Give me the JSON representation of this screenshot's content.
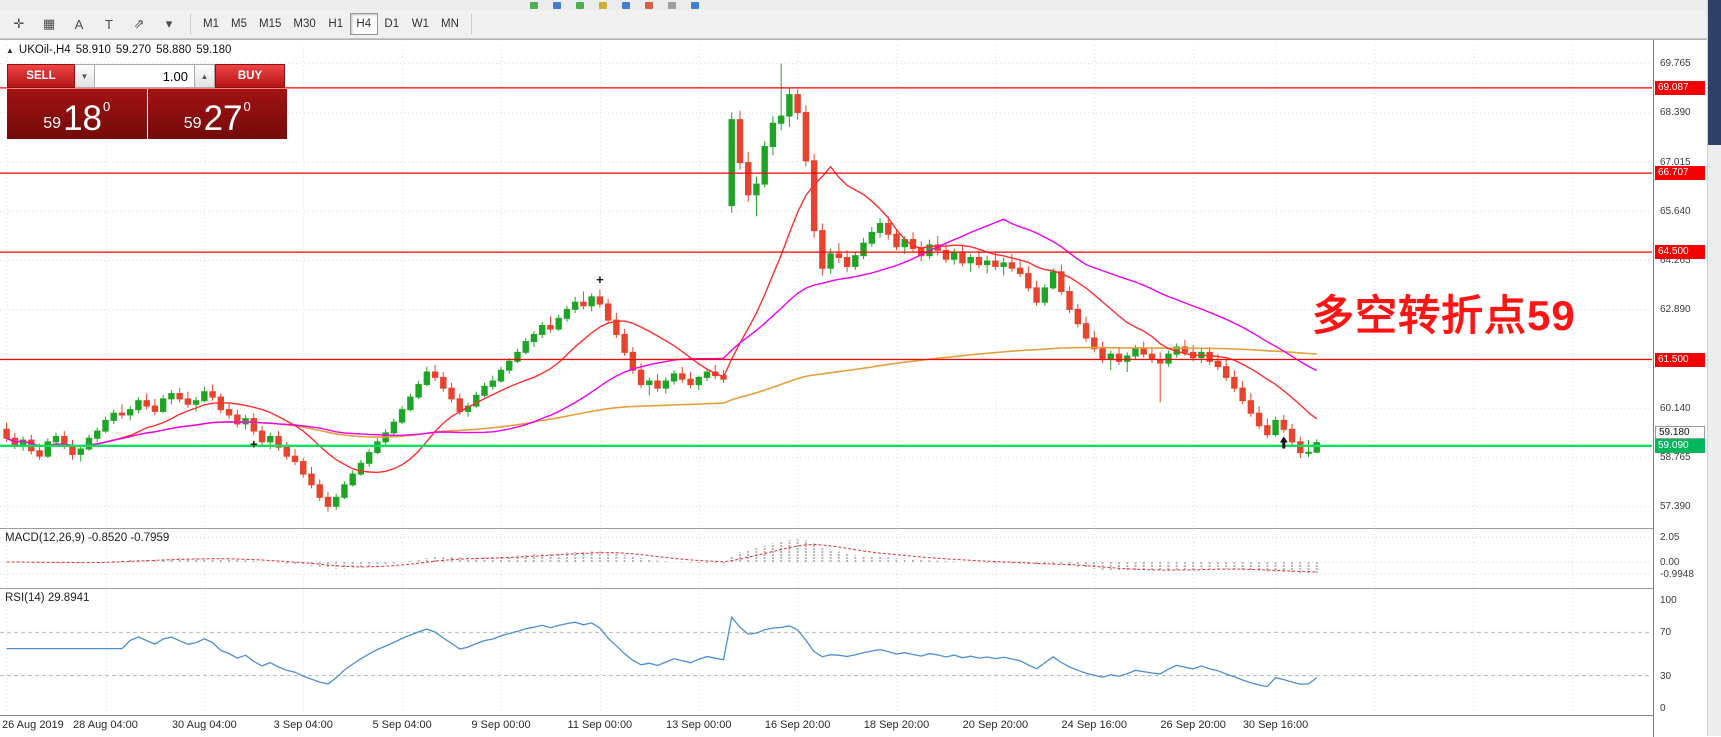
{
  "top_strip": {
    "icon_colors": [
      "#4CAF50",
      "#3F7FD1",
      "#4CAF50",
      "#C9B037",
      "#3F7FD1",
      "#D1603F",
      "#9E9E9E",
      "#3F7FD1"
    ]
  },
  "toolbar": {
    "tools": [
      {
        "name": "crosshair-tool-icon",
        "glyph": "✛"
      },
      {
        "name": "grid-indicator-icon",
        "glyph": "▦"
      },
      {
        "name": "text-tool-icon",
        "glyph": "A"
      },
      {
        "name": "text-label-tool-icon",
        "glyph": "T"
      },
      {
        "name": "arrows-tool-icon",
        "glyph": "⇗"
      },
      {
        "name": "dropdown-chevron-icon",
        "glyph": "▾"
      }
    ],
    "timeframes": [
      {
        "label": "M1",
        "active": false
      },
      {
        "label": "M5",
        "active": false
      },
      {
        "label": "M15",
        "active": false
      },
      {
        "label": "M30",
        "active": false
      },
      {
        "label": "H1",
        "active": false
      },
      {
        "label": "H4",
        "active": true
      },
      {
        "label": "D1",
        "active": false
      },
      {
        "label": "W1",
        "active": false
      },
      {
        "label": "MN",
        "active": false
      }
    ]
  },
  "chart_header": {
    "expand_glyph": "▲",
    "symbol": "UKOil-,H4",
    "open": "58.910",
    "high": "59.270",
    "low": "58.880",
    "close": "59.180"
  },
  "trade_panel": {
    "sell_label": "SELL",
    "buy_label": "BUY",
    "volume": "1.00",
    "spin_down": "▼",
    "spin_up": "▲",
    "sell_price": {
      "small": "59",
      "big": "18",
      "sup": "0"
    },
    "buy_price": {
      "small": "59",
      "big": "27",
      "sup": "0"
    }
  },
  "annotation": {
    "text": "多空转折点59",
    "color": "#FF1414"
  },
  "price_axis": {
    "labels": [
      {
        "text": "69.765",
        "value": 69.765
      },
      {
        "text": "68.390",
        "value": 68.39
      },
      {
        "text": "67.015",
        "value": 67.015
      },
      {
        "text": "65.640",
        "value": 65.64
      },
      {
        "text": "64.265",
        "value": 64.265
      },
      {
        "text": "62.890",
        "value": 62.89
      },
      {
        "text": "60.140",
        "value": 60.14
      },
      {
        "text": "58.765",
        "value": 58.765
      },
      {
        "text": "57.390",
        "value": 57.39
      }
    ],
    "red_tags": [
      {
        "text": "69.087",
        "value": 69.087
      },
      {
        "text": "66.707",
        "value": 66.707
      },
      {
        "text": "64.500",
        "value": 64.5
      },
      {
        "text": "61.500",
        "value": 61.5
      }
    ],
    "bid_tag": {
      "text": "59.180",
      "value": 59.18
    },
    "green_tag": {
      "text": "59.090",
      "value": 59.09
    }
  },
  "grid_prices": [
    69.765,
    68.39,
    67.015,
    65.64,
    64.265,
    62.89,
    61.515,
    60.14,
    58.765,
    57.39
  ],
  "time_axis": [
    {
      "label": "26 Aug 2019",
      "i": 0
    },
    {
      "label": "28 Aug 04:00",
      "i": 12
    },
    {
      "label": "30 Aug 04:00",
      "i": 24
    },
    {
      "label": "3 Sep 04:00",
      "i": 36
    },
    {
      "label": "5 Sep 04:00",
      "i": 48
    },
    {
      "label": "9 Sep 00:00",
      "i": 60
    },
    {
      "label": "11 Sep 00:00",
      "i": 72
    },
    {
      "label": "13 Sep 00:00",
      "i": 84
    },
    {
      "label": "16 Sep 20:00",
      "i": 96
    },
    {
      "label": "18 Sep 20:00",
      "i": 108
    },
    {
      "label": "20 Sep 20:00",
      "i": 120
    },
    {
      "label": "24 Sep 16:00",
      "i": 132
    },
    {
      "label": "26 Sep 20:00",
      "i": 144
    },
    {
      "label": "30 Sep 16:00",
      "i": 154
    }
  ],
  "macd_panel": {
    "label": "MACD(12,26,9) -0.8520 -0.7959",
    "axis": [
      {
        "text": "2.05",
        "value": 2.05
      },
      {
        "text": "0.00",
        "value": 0
      },
      {
        "text": "-0.9948",
        "value": -0.9948
      }
    ]
  },
  "rsi_panel": {
    "label": "RSI(14) 29.8941",
    "axis": [
      {
        "text": "100",
        "value": 100
      },
      {
        "text": "70",
        "value": 70
      },
      {
        "text": "30",
        "value": 30
      },
      {
        "text": "0",
        "value": 0
      }
    ],
    "level_lines": [
      70,
      30
    ]
  },
  "chart_data": {
    "type": "candlestick",
    "symbol": "UKOil-",
    "timeframe": "H4",
    "current_bar": {
      "open": 58.91,
      "high": 59.27,
      "low": 58.88,
      "close": 59.18
    },
    "price_range_visible": [
      57.39,
      69.765
    ],
    "hlines_red": [
      69.087,
      66.707,
      64.5,
      61.5
    ],
    "hline_green": 59.09,
    "colors": {
      "up": "#1FA526",
      "down": "#E8432C",
      "red_line": "#FF0000",
      "green_line": "#00E25C"
    },
    "overlays": [
      {
        "name": "ma-slow-orange",
        "color": "#E2A13C",
        "period": 160,
        "width": 1.6
      },
      {
        "name": "ma-fast-red",
        "color": "#FF2E2E",
        "period": 13,
        "width": 1.4
      },
      {
        "name": "ma-mid-magenta",
        "color": "#EE00EE",
        "period": 34,
        "width": 1.4
      }
    ],
    "indicators": [
      {
        "name": "MACD",
        "params": [
          12,
          26,
          9
        ],
        "value": -0.852,
        "signal": -0.7959
      },
      {
        "name": "RSI",
        "params": [
          14
        ],
        "value": 29.8941
      }
    ],
    "markers": [
      {
        "type": "cross",
        "index": 30,
        "price": 59.12
      },
      {
        "type": "cross",
        "index": 72,
        "price": 63.72
      },
      {
        "type": "arrow-up",
        "index": 155,
        "price": 59.18
      }
    ],
    "candles": [
      [
        59.55,
        59.75,
        59.2,
        59.3
      ],
      [
        59.3,
        59.45,
        59.0,
        59.1
      ],
      [
        59.1,
        59.35,
        58.95,
        59.25
      ],
      [
        59.25,
        59.4,
        58.85,
        58.95
      ],
      [
        58.95,
        59.15,
        58.7,
        58.8
      ],
      [
        58.8,
        59.3,
        58.75,
        59.2
      ],
      [
        59.2,
        59.45,
        59.05,
        59.35
      ],
      [
        59.35,
        59.5,
        59.0,
        59.1
      ],
      [
        59.1,
        59.25,
        58.7,
        58.85
      ],
      [
        58.85,
        59.1,
        58.65,
        59.0
      ],
      [
        59.0,
        59.4,
        58.95,
        59.3
      ],
      [
        59.3,
        59.6,
        59.2,
        59.5
      ],
      [
        59.5,
        59.9,
        59.45,
        59.8
      ],
      [
        59.8,
        60.1,
        59.7,
        60.0
      ],
      [
        60.0,
        60.25,
        59.85,
        59.95
      ],
      [
        59.95,
        60.2,
        59.8,
        60.1
      ],
      [
        60.1,
        60.45,
        60.0,
        60.35
      ],
      [
        60.35,
        60.55,
        60.1,
        60.2
      ],
      [
        60.2,
        60.4,
        59.95,
        60.05
      ],
      [
        60.05,
        60.5,
        60.0,
        60.4
      ],
      [
        60.4,
        60.65,
        60.25,
        60.55
      ],
      [
        60.55,
        60.7,
        60.3,
        60.4
      ],
      [
        60.4,
        60.6,
        60.15,
        60.25
      ],
      [
        60.25,
        60.45,
        60.05,
        60.35
      ],
      [
        60.35,
        60.75,
        60.3,
        60.6
      ],
      [
        60.6,
        60.8,
        60.35,
        60.45
      ],
      [
        60.45,
        60.55,
        60.0,
        60.1
      ],
      [
        60.1,
        60.3,
        59.85,
        59.95
      ],
      [
        59.95,
        60.1,
        59.6,
        59.7
      ],
      [
        59.7,
        59.95,
        59.55,
        59.85
      ],
      [
        59.85,
        60.0,
        59.4,
        59.5
      ],
      [
        59.5,
        59.65,
        59.1,
        59.2
      ],
      [
        59.2,
        59.45,
        59.0,
        59.35
      ],
      [
        59.35,
        59.5,
        58.95,
        59.05
      ],
      [
        59.05,
        59.2,
        58.7,
        58.8
      ],
      [
        58.8,
        59.0,
        58.55,
        58.65
      ],
      [
        58.65,
        58.75,
        58.2,
        58.3
      ],
      [
        58.3,
        58.5,
        57.9,
        58.0
      ],
      [
        58.0,
        58.15,
        57.55,
        57.65
      ],
      [
        57.65,
        57.8,
        57.25,
        57.4
      ],
      [
        57.4,
        57.75,
        57.3,
        57.65
      ],
      [
        57.65,
        58.1,
        57.6,
        58.0
      ],
      [
        58.0,
        58.4,
        57.95,
        58.3
      ],
      [
        58.3,
        58.7,
        58.25,
        58.6
      ],
      [
        58.6,
        59.0,
        58.5,
        58.9
      ],
      [
        58.9,
        59.3,
        58.85,
        59.2
      ],
      [
        59.2,
        59.55,
        59.1,
        59.45
      ],
      [
        59.45,
        59.85,
        59.4,
        59.75
      ],
      [
        59.75,
        60.2,
        59.7,
        60.1
      ],
      [
        60.1,
        60.55,
        60.05,
        60.45
      ],
      [
        60.45,
        60.9,
        60.4,
        60.8
      ],
      [
        60.8,
        61.3,
        60.75,
        61.15
      ],
      [
        61.15,
        61.35,
        60.9,
        61.0
      ],
      [
        61.0,
        61.15,
        60.6,
        60.7
      ],
      [
        60.7,
        60.85,
        60.3,
        60.4
      ],
      [
        60.4,
        60.55,
        59.95,
        60.05
      ],
      [
        60.05,
        60.3,
        59.9,
        60.2
      ],
      [
        60.2,
        60.6,
        60.15,
        60.5
      ],
      [
        60.5,
        60.85,
        60.45,
        60.75
      ],
      [
        60.75,
        61.05,
        60.65,
        60.9
      ],
      [
        60.9,
        61.3,
        60.85,
        61.2
      ],
      [
        61.2,
        61.55,
        61.1,
        61.45
      ],
      [
        61.45,
        61.8,
        61.4,
        61.7
      ],
      [
        61.7,
        62.1,
        61.65,
        62.0
      ],
      [
        62.0,
        62.3,
        61.85,
        62.2
      ],
      [
        62.2,
        62.55,
        62.1,
        62.45
      ],
      [
        62.45,
        62.7,
        62.25,
        62.35
      ],
      [
        62.35,
        62.75,
        62.3,
        62.65
      ],
      [
        62.65,
        63.0,
        62.55,
        62.9
      ],
      [
        62.9,
        63.25,
        62.8,
        63.1
      ],
      [
        63.1,
        63.4,
        62.9,
        63.0
      ],
      [
        63.0,
        63.35,
        62.85,
        63.25
      ],
      [
        63.25,
        63.45,
        62.95,
        63.05
      ],
      [
        63.05,
        63.2,
        62.5,
        62.6
      ],
      [
        62.6,
        62.8,
        62.1,
        62.2
      ],
      [
        62.2,
        62.35,
        61.6,
        61.7
      ],
      [
        61.7,
        61.85,
        61.1,
        61.2
      ],
      [
        61.2,
        61.4,
        60.7,
        60.8
      ],
      [
        60.8,
        61.0,
        60.5,
        60.9
      ],
      [
        60.9,
        61.1,
        60.6,
        60.7
      ],
      [
        60.7,
        61.0,
        60.55,
        60.9
      ],
      [
        60.9,
        61.2,
        60.8,
        61.1
      ],
      [
        61.1,
        61.3,
        60.85,
        60.95
      ],
      [
        60.95,
        61.15,
        60.7,
        60.8
      ],
      [
        60.8,
        61.05,
        60.65,
        61.0
      ],
      [
        61.0,
        61.25,
        60.9,
        61.15
      ],
      [
        61.15,
        61.35,
        60.95,
        61.05
      ],
      [
        61.05,
        61.2,
        60.85,
        60.95
      ],
      [
        65.8,
        68.4,
        65.6,
        68.2
      ],
      [
        68.2,
        68.45,
        66.8,
        67.0
      ],
      [
        67.0,
        67.3,
        65.9,
        66.1
      ],
      [
        66.1,
        66.6,
        65.5,
        66.4
      ],
      [
        66.4,
        67.6,
        66.3,
        67.45
      ],
      [
        67.45,
        68.3,
        67.2,
        68.1
      ],
      [
        68.1,
        69.765,
        67.9,
        68.3
      ],
      [
        68.3,
        69.1,
        68.0,
        68.9
      ],
      [
        68.9,
        69.05,
        68.2,
        68.4
      ],
      [
        68.4,
        68.6,
        66.9,
        67.05
      ],
      [
        67.05,
        67.25,
        64.9,
        65.1
      ],
      [
        65.1,
        65.3,
        63.85,
        64.05
      ],
      [
        64.05,
        64.6,
        63.9,
        64.45
      ],
      [
        64.45,
        64.75,
        64.2,
        64.35
      ],
      [
        64.35,
        64.55,
        63.95,
        64.1
      ],
      [
        64.1,
        64.5,
        64.0,
        64.4
      ],
      [
        64.4,
        64.9,
        64.3,
        64.75
      ],
      [
        64.75,
        65.2,
        64.65,
        65.05
      ],
      [
        65.05,
        65.45,
        64.9,
        65.3
      ],
      [
        65.3,
        65.5,
        64.85,
        65.0
      ],
      [
        65.0,
        65.15,
        64.55,
        64.65
      ],
      [
        64.65,
        64.95,
        64.45,
        64.85
      ],
      [
        64.85,
        65.05,
        64.5,
        64.6
      ],
      [
        64.6,
        64.8,
        64.25,
        64.4
      ],
      [
        64.4,
        64.85,
        64.3,
        64.7
      ],
      [
        64.7,
        64.95,
        64.4,
        64.55
      ],
      [
        64.55,
        64.75,
        64.2,
        64.3
      ],
      [
        64.3,
        64.6,
        64.15,
        64.5
      ],
      [
        64.5,
        64.7,
        64.1,
        64.2
      ],
      [
        64.2,
        64.45,
        63.95,
        64.35
      ],
      [
        64.35,
        64.55,
        64.05,
        64.15
      ],
      [
        64.15,
        64.4,
        63.9,
        64.25
      ],
      [
        64.25,
        64.5,
        64.0,
        64.1
      ],
      [
        64.1,
        64.35,
        63.85,
        64.2
      ],
      [
        64.2,
        64.45,
        63.95,
        64.05
      ],
      [
        64.05,
        64.3,
        63.8,
        63.9
      ],
      [
        63.9,
        64.1,
        63.4,
        63.5
      ],
      [
        63.5,
        63.7,
        63.0,
        63.1
      ],
      [
        63.1,
        63.6,
        63.0,
        63.5
      ],
      [
        63.5,
        64.05,
        63.45,
        63.95
      ],
      [
        63.95,
        64.15,
        63.3,
        63.4
      ],
      [
        63.4,
        63.55,
        62.8,
        62.9
      ],
      [
        62.9,
        63.05,
        62.4,
        62.5
      ],
      [
        62.5,
        62.7,
        62.0,
        62.1
      ],
      [
        62.1,
        62.3,
        61.7,
        61.8
      ],
      [
        61.8,
        62.0,
        61.4,
        61.5
      ],
      [
        61.5,
        61.75,
        61.2,
        61.65
      ],
      [
        61.65,
        61.85,
        61.35,
        61.45
      ],
      [
        61.45,
        61.7,
        61.15,
        61.6
      ],
      [
        61.6,
        61.9,
        61.5,
        61.8
      ],
      [
        61.8,
        62.0,
        61.55,
        61.65
      ],
      [
        61.65,
        61.85,
        61.4,
        61.5
      ],
      [
        61.5,
        61.7,
        60.3,
        61.4
      ],
      [
        61.4,
        61.75,
        61.3,
        61.65
      ],
      [
        61.65,
        61.95,
        61.55,
        61.85
      ],
      [
        61.85,
        62.05,
        61.6,
        61.7
      ],
      [
        61.7,
        61.9,
        61.45,
        61.55
      ],
      [
        61.55,
        61.8,
        61.4,
        61.7
      ],
      [
        61.7,
        61.85,
        61.35,
        61.45
      ],
      [
        61.45,
        61.65,
        61.2,
        61.3
      ],
      [
        61.3,
        61.5,
        60.9,
        61.0
      ],
      [
        61.0,
        61.2,
        60.6,
        60.7
      ],
      [
        60.7,
        60.9,
        60.25,
        60.35
      ],
      [
        60.35,
        60.55,
        59.9,
        60.0
      ],
      [
        60.0,
        60.2,
        59.55,
        59.65
      ],
      [
        59.65,
        59.85,
        59.3,
        59.4
      ],
      [
        59.4,
        59.9,
        59.35,
        59.8
      ],
      [
        59.8,
        59.95,
        59.45,
        59.55
      ],
      [
        59.55,
        59.7,
        59.1,
        59.2
      ],
      [
        59.2,
        59.35,
        58.75,
        58.9
      ],
      [
        58.9,
        59.25,
        58.78,
        58.91
      ],
      [
        58.91,
        59.27,
        58.88,
        59.18
      ]
    ]
  }
}
